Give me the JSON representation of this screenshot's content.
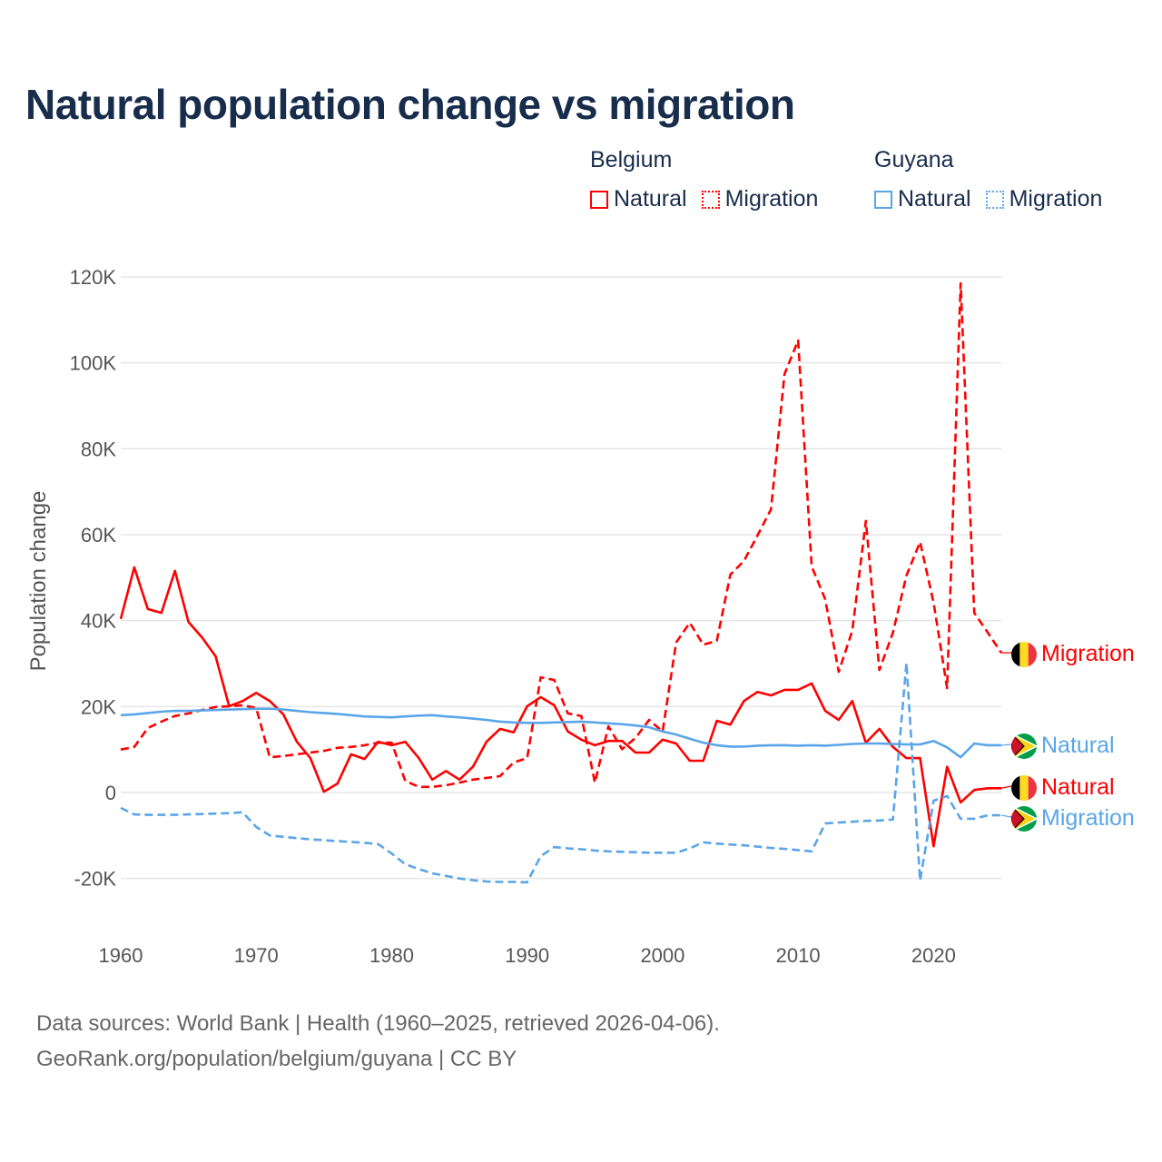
{
  "title": "Natural population change vs migration",
  "legend": {
    "groups": [
      {
        "name": "Belgium",
        "color": "#ff0000",
        "items": [
          "Natural",
          "Migration"
        ]
      },
      {
        "name": "Guyana",
        "color": "#5aa5e8",
        "items": [
          "Natural",
          "Migration"
        ]
      }
    ]
  },
  "footer": {
    "line1": "Data sources: World Bank | Health (1960–2025, retrieved 2026-04-06).",
    "line2": "GeoRank.org/population/belgium/guyana | CC BY"
  },
  "end_labels": {
    "belgium_migration": "Migration",
    "guyana_natural": "Natural",
    "belgium_natural": "Natural",
    "guyana_migration": "Migration"
  },
  "chart_data": {
    "type": "line",
    "title": "Natural population change vs migration",
    "xlabel": "",
    "ylabel": "Population change",
    "xlim": [
      1960,
      2025
    ],
    "ylim": [
      -20000,
      120000
    ],
    "xticks": [
      1960,
      1970,
      1980,
      1990,
      2000,
      2010,
      2020
    ],
    "xtick_labels": [
      "1960",
      "1970",
      "1980",
      "1990",
      "2000",
      "2010",
      "2020"
    ],
    "yticks": [
      -20000,
      0,
      20000,
      40000,
      60000,
      80000,
      100000,
      120000
    ],
    "ytick_labels": [
      "-20K",
      "0",
      "20K",
      "40K",
      "60K",
      "80K",
      "100K",
      "120K"
    ],
    "grid": true,
    "legend_position": "top-right",
    "x_start": 1960,
    "series": [
      {
        "name": "Belgium Natural",
        "country": "Belgium",
        "kind": "Natural",
        "color": "#ff0000",
        "dash": "solid",
        "values": [
          40400,
          52400,
          42700,
          41800,
          51600,
          39700,
          36100,
          31700,
          20100,
          21300,
          23200,
          21300,
          18200,
          11800,
          8000,
          200,
          2100,
          8900,
          7800,
          11800,
          11000,
          11800,
          8000,
          3000,
          5000,
          3000,
          6000,
          11800,
          14800,
          14000,
          20100,
          22200,
          20300,
          14200,
          12300,
          11000,
          12000,
          12000,
          9300,
          9300,
          12300,
          11400,
          7400,
          7400,
          16700,
          15800,
          21300,
          23400,
          22600,
          23900,
          23900,
          25400,
          19000,
          16900,
          21300,
          11600,
          14800,
          10600,
          8000,
          8000,
          -12500,
          6000,
          -2300,
          600,
          1000,
          1000
        ]
      },
      {
        "name": "Belgium Migration",
        "country": "Belgium",
        "kind": "Migration",
        "color": "#ff0000",
        "dash": "dashed",
        "values": [
          10000,
          10600,
          15000,
          16500,
          17800,
          18400,
          19200,
          19900,
          20100,
          20300,
          19700,
          8200,
          8500,
          8900,
          9300,
          9700,
          10400,
          10600,
          11000,
          11600,
          11600,
          2700,
          1300,
          1300,
          1700,
          2300,
          3000,
          3400,
          3800,
          7000,
          8000,
          26800,
          26200,
          18400,
          17800,
          2300,
          15400,
          10100,
          12700,
          16900,
          14200,
          34900,
          39500,
          34400,
          35300,
          50700,
          53900,
          59800,
          65900,
          97400,
          105200,
          52600,
          45000,
          28100,
          37600,
          63200,
          28500,
          37200,
          50500,
          58300,
          44200,
          24300,
          118500,
          41800,
          37200,
          32500
        ]
      },
      {
        "name": "Guyana Natural",
        "country": "Guyana",
        "kind": "Natural",
        "color": "#5aa5e8",
        "dash": "solid",
        "values": [
          18000,
          18200,
          18500,
          18800,
          19000,
          19000,
          19100,
          19200,
          19300,
          19400,
          19500,
          19500,
          19300,
          19000,
          18700,
          18500,
          18300,
          18000,
          17700,
          17600,
          17500,
          17700,
          17900,
          18000,
          17700,
          17500,
          17200,
          16900,
          16500,
          16300,
          16200,
          16200,
          16300,
          16400,
          16500,
          16300,
          16100,
          15900,
          15600,
          15200,
          14200,
          13500,
          12500,
          11600,
          11000,
          10700,
          10700,
          10900,
          11000,
          11000,
          10900,
          11000,
          10900,
          11100,
          11300,
          11400,
          11400,
          11300,
          11200,
          11200,
          12000,
          10500,
          8200,
          11400,
          11000,
          11000
        ]
      },
      {
        "name": "Guyana Migration",
        "country": "Guyana",
        "kind": "Migration",
        "color": "#5aa5e8",
        "dash": "dashed",
        "values": [
          -3600,
          -5100,
          -5200,
          -5200,
          -5200,
          -5100,
          -5000,
          -4900,
          -4800,
          -4600,
          -8000,
          -10000,
          -10300,
          -10600,
          -10900,
          -11100,
          -11300,
          -11500,
          -11700,
          -12000,
          -14200,
          -16700,
          -17800,
          -18800,
          -19400,
          -20000,
          -20400,
          -20700,
          -20800,
          -20800,
          -20900,
          -14800,
          -12700,
          -13000,
          -13200,
          -13500,
          -13700,
          -13800,
          -13900,
          -14000,
          -14000,
          -14000,
          -13000,
          -11600,
          -11900,
          -12100,
          -12300,
          -12600,
          -12900,
          -13100,
          -13400,
          -13700,
          -7200,
          -7000,
          -6800,
          -6600,
          -6500,
          -6300,
          30200,
          -20500,
          -1900,
          -800,
          -6100,
          -6100,
          -5300,
          -5300
        ]
      }
    ]
  }
}
